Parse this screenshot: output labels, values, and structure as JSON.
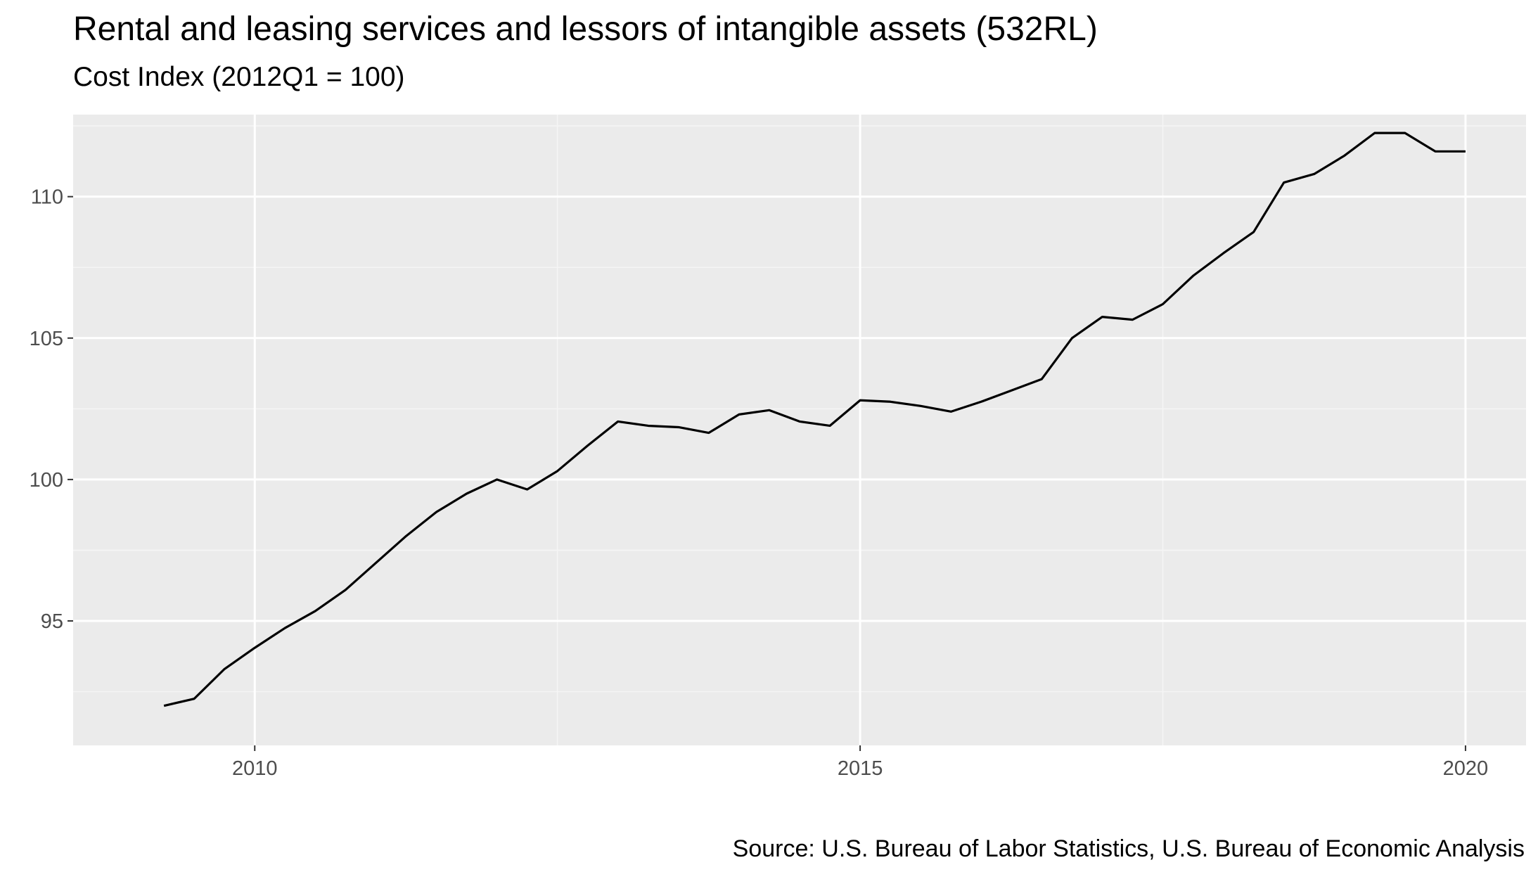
{
  "chart_data": {
    "type": "line",
    "title": "Rental and leasing services and lessors of intangible assets (532RL)",
    "subtitle": "Cost Index (2012Q1 = 100)",
    "caption": "Source: U.S. Bureau of Labor Statistics, U.S. Bureau of Economic Analysis",
    "xlabel": "",
    "ylabel": "",
    "xlim": [
      2008.5,
      2020.5
    ],
    "ylim": [
      90.6,
      112.9
    ],
    "x_ticks": [
      2010,
      2015,
      2020
    ],
    "y_ticks": [
      95,
      100,
      105,
      110
    ],
    "grid": true,
    "legend": "none",
    "series": [
      {
        "x": [
          2009.25,
          2009.5,
          2009.75,
          2010.0,
          2010.25,
          2010.5,
          2010.75,
          2011.0,
          2011.25,
          2011.5,
          2011.75,
          2012.0,
          2012.25,
          2012.5,
          2012.75,
          2013.0,
          2013.25,
          2013.5,
          2013.75,
          2014.0,
          2014.25,
          2014.5,
          2014.75,
          2015.0,
          2015.25,
          2015.5,
          2015.75,
          2016.0,
          2016.25,
          2016.5,
          2016.75,
          2017.0,
          2017.25,
          2017.5,
          2017.75,
          2018.0,
          2018.25,
          2018.5,
          2018.75,
          2019.0,
          2019.25,
          2019.5,
          2019.75,
          2020.0
        ],
        "y": [
          92.0,
          92.25,
          93.3,
          94.05,
          94.75,
          95.35,
          96.1,
          97.05,
          98.0,
          98.85,
          99.5,
          100.0,
          99.65,
          100.3,
          101.2,
          102.05,
          101.9,
          101.85,
          101.65,
          102.3,
          102.45,
          102.05,
          101.9,
          102.8,
          102.75,
          102.6,
          102.4,
          102.75,
          103.15,
          103.55,
          105.0,
          105.75,
          105.65,
          106.2,
          107.2,
          108.0,
          108.75,
          110.5,
          110.8,
          111.45,
          112.25,
          112.25,
          111.6,
          111.6
        ]
      }
    ],
    "colors": {
      "panel_background": "#ebebeb",
      "grid_major": "#ffffff",
      "grid_minor": "#f5f5f5",
      "line": "#000000",
      "tick_text": "#4d4d4d"
    }
  }
}
